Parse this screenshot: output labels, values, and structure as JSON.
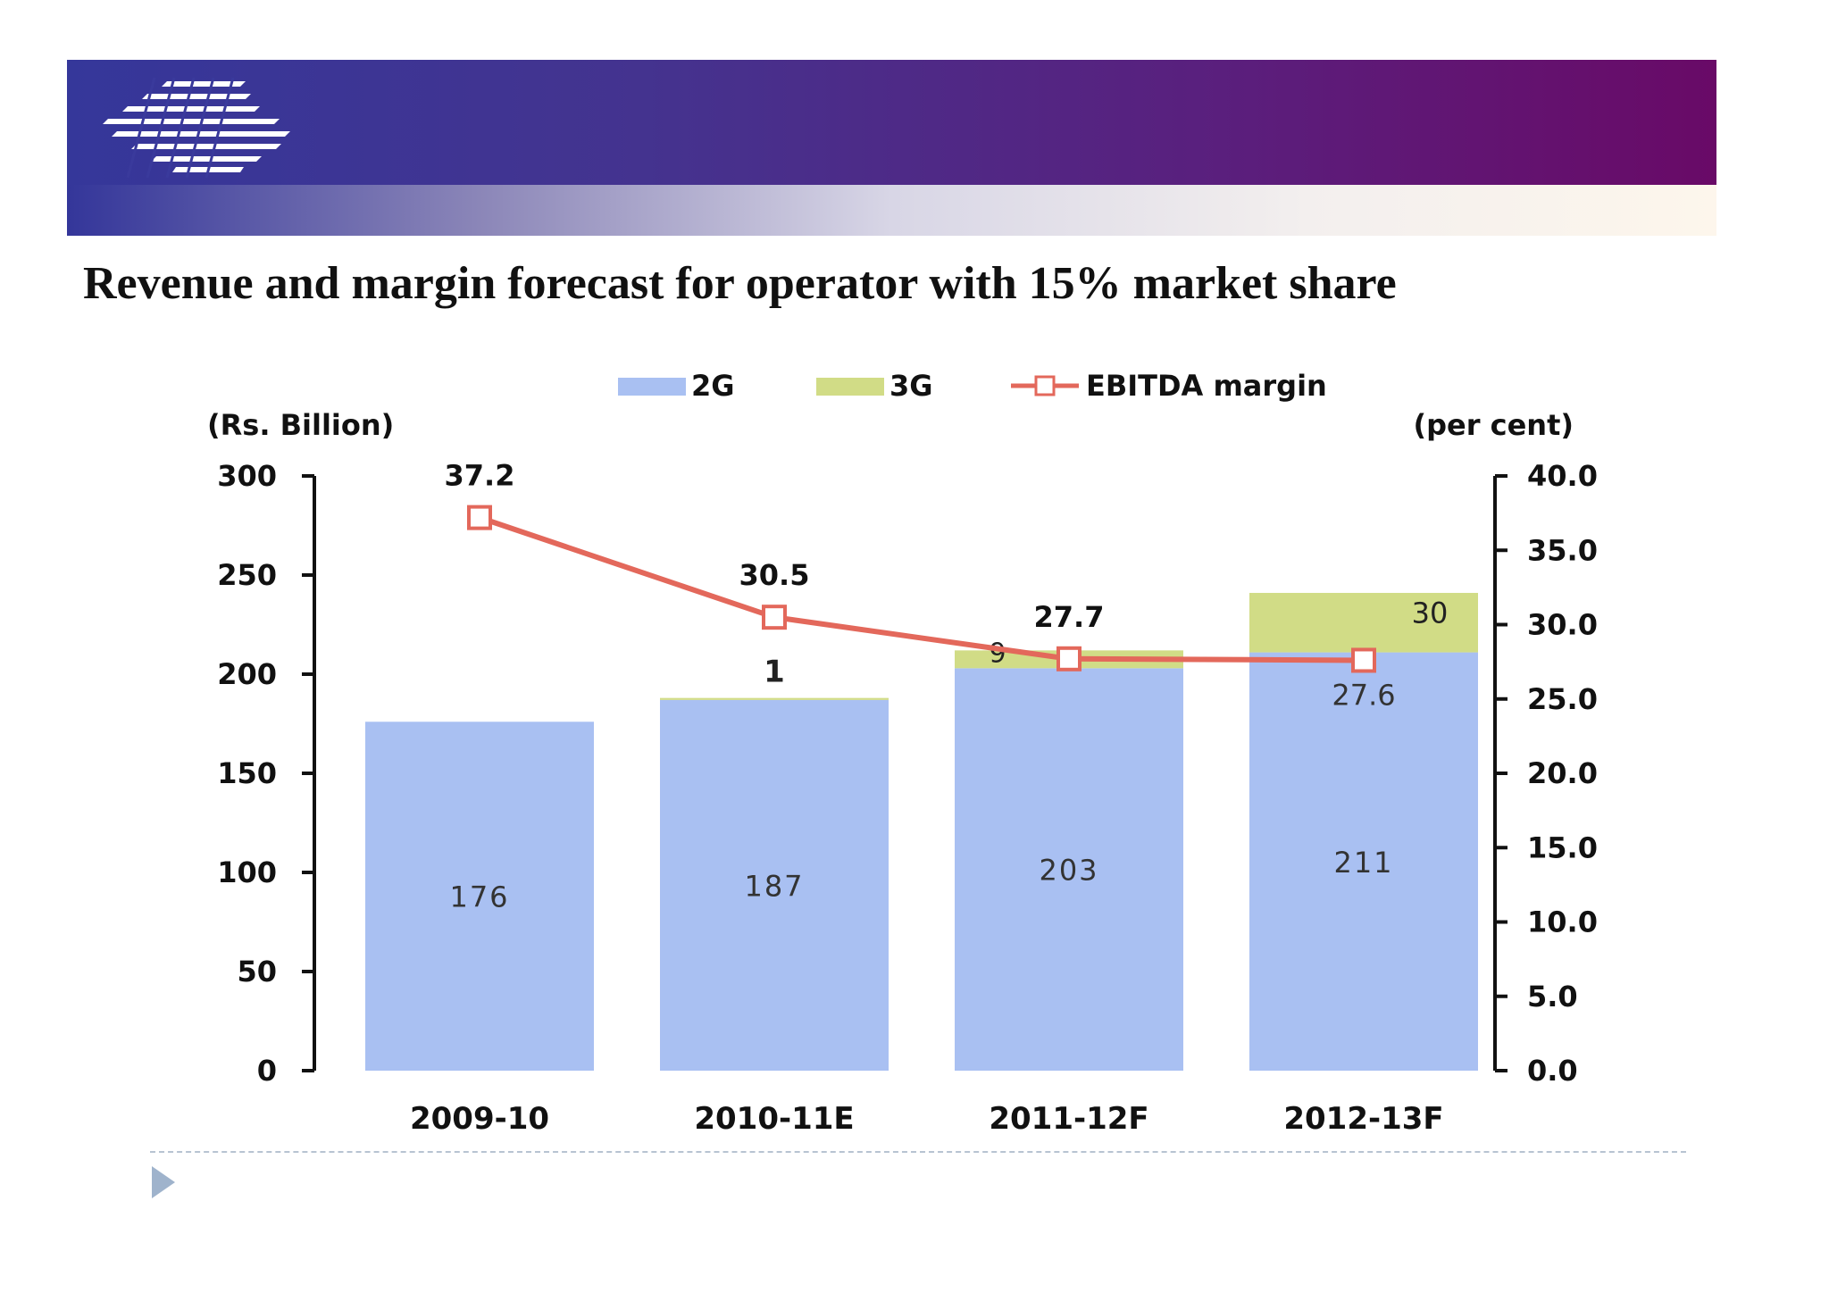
{
  "slide": {
    "title": "Revenue and margin forecast for operator with 15% market share",
    "banner_colors": {
      "left": "#35379a",
      "right": "#690a67"
    }
  },
  "chart_data": {
    "type": "bar",
    "stacked": true,
    "categories": [
      "2009-10",
      "2010-11E",
      "2011-12F",
      "2012-13F"
    ],
    "series": [
      {
        "name": "2G",
        "values": [
          176,
          187,
          203,
          211
        ],
        "color": "#a9c0f2",
        "value_labels": [
          "176",
          "187",
          "203",
          "211"
        ]
      },
      {
        "name": "3G",
        "values": [
          0,
          1,
          9,
          30
        ],
        "color": "#d1dc86",
        "value_labels": [
          "",
          "1",
          "9",
          "30"
        ]
      }
    ],
    "line_series": {
      "name": "EBITDA margin",
      "axis": "right",
      "values": [
        37.2,
        30.5,
        27.7,
        27.6
      ],
      "value_labels": [
        "37.2",
        "30.5",
        "27.7",
        "27.6"
      ],
      "color": "#e3685b"
    },
    "y_left": {
      "label": "(Rs. Billion)",
      "ylim": [
        0,
        300
      ],
      "ticks": [
        "0",
        "50",
        "100",
        "150",
        "200",
        "250",
        "300"
      ]
    },
    "y_right": {
      "label": "(per cent)",
      "ylim": [
        0,
        40
      ],
      "ticks": [
        "0.0",
        "5.0",
        "10.0",
        "15.0",
        "20.0",
        "25.0",
        "30.0",
        "35.0",
        "40.0"
      ]
    },
    "legend_position": "top",
    "grid": false
  }
}
